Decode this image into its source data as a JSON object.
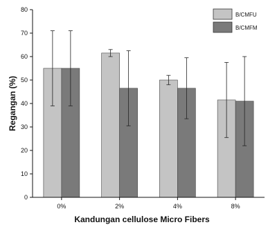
{
  "chart_data": {
    "type": "bar",
    "categories": [
      "0%",
      "2%",
      "4%",
      "8%"
    ],
    "series": [
      {
        "name": "B/CMFU",
        "values": [
          55,
          61.5,
          50,
          41.5
        ],
        "errors": [
          16,
          1.5,
          2,
          16
        ],
        "color": "#c4c4c4"
      },
      {
        "name": "B/CMFM",
        "values": [
          55,
          46.5,
          46.5,
          41
        ],
        "errors": [
          16,
          16,
          13,
          19
        ],
        "color": "#7a7a7a"
      }
    ],
    "title": "",
    "xlabel": "Kandungan cellulose Micro Fibers",
    "ylabel": "Regangan (%)",
    "ylim": [
      0,
      80
    ],
    "yticks": [
      0,
      10,
      20,
      30,
      40,
      50,
      60,
      70,
      80
    ],
    "grid": false,
    "legend": "top-right"
  }
}
